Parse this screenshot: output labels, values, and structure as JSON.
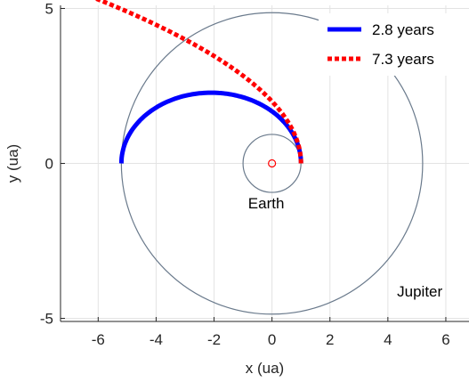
{
  "chart_data": {
    "type": "line",
    "xlabel": "x (ua)",
    "ylabel": "y (ua)",
    "xlim": [
      -7.3,
      6.8
    ],
    "ylim": [
      -5.1,
      5.1
    ],
    "xticks": [
      -6,
      -4,
      -2,
      0,
      2,
      4,
      6
    ],
    "xtick_labels": [
      "-6",
      "-4",
      "-2",
      "0",
      "2",
      "4",
      "6"
    ],
    "yticks": [
      -5,
      0,
      5
    ],
    "ytick_labels": [
      "-5",
      "0",
      "5"
    ],
    "grid": true,
    "legend_position": "top-right",
    "orbits": [
      {
        "label": "Earth",
        "radius": 1.0,
        "color": "#6a7a8c"
      },
      {
        "label": "Jupiter",
        "radius": 5.2,
        "color": "#6a7a8c"
      }
    ],
    "series": [
      {
        "name": "2.8 years",
        "style": "solid",
        "color": "#0000ff",
        "description_points": "transfer ellipse, perihelion 1 ua, aphelion 5.2 ua",
        "a": 3.1,
        "e": 0.677,
        "theta_start_deg": 0,
        "theta_end_deg": 180
      },
      {
        "name": "7.3 years",
        "style": "dotted",
        "color": "#ff0000",
        "a": 3.75,
        "e": 1.0,
        "theta_start_deg": 0,
        "theta_end_deg": 300
      }
    ],
    "sun": {
      "x": 0,
      "y": 0,
      "color": "#ff0000"
    }
  }
}
